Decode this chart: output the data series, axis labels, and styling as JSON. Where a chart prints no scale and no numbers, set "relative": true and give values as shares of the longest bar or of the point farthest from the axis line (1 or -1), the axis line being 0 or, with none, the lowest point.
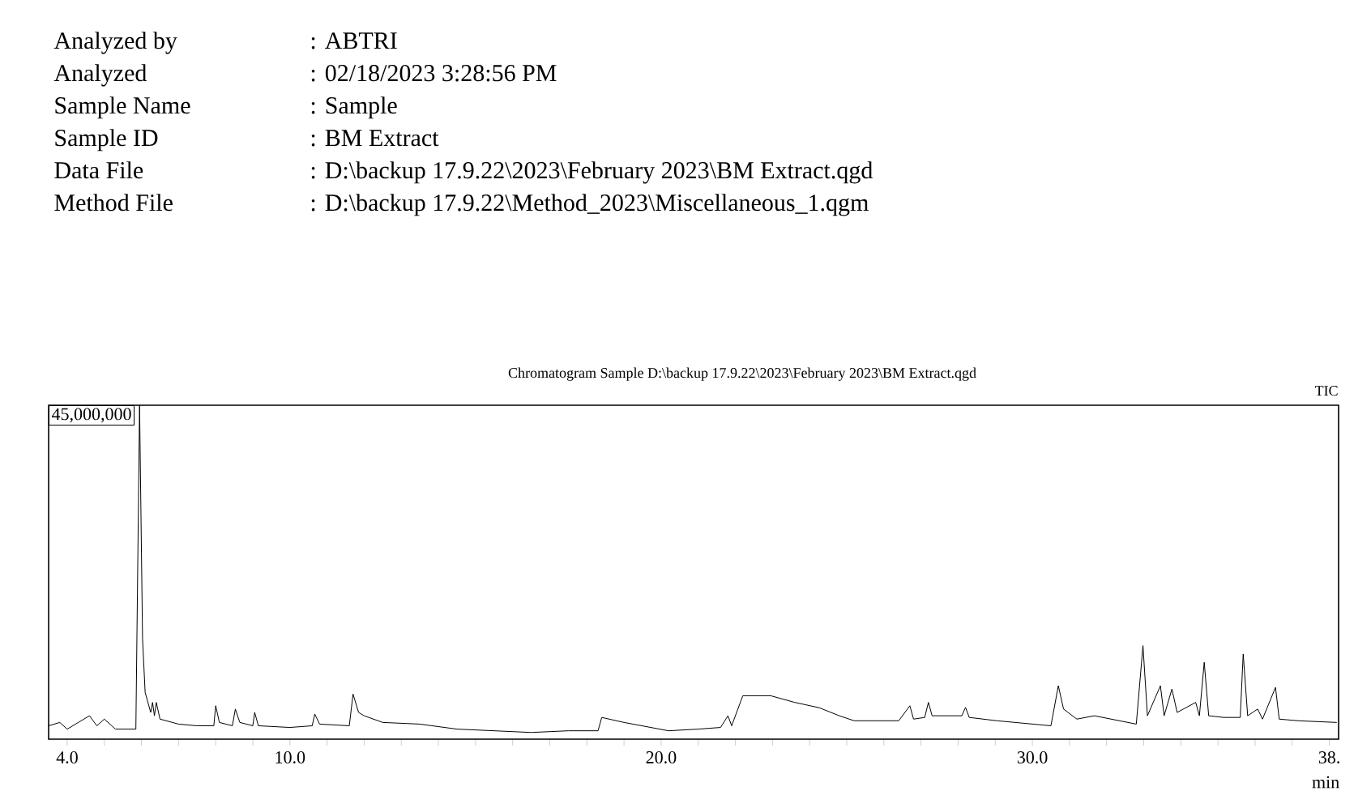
{
  "chart_data": {
    "type": "line",
    "relative": true,
    "title": "Chromatogram Sample D:\\backup 17.9.22\\2023\\February 2023\\BM Extract.qgd",
    "xlabel": "min",
    "annotations": [
      "Analyzed by",
      ": ABTRI",
      "Analyzed",
      ": 02/18/2023  3:28:56 PM",
      "Sample Name",
      ": Sample",
      "Sample ID",
      ": BM Extract",
      "Data File",
      ": D:\\backup 17.9.22\\2023\\February 2023\\BM Extract.qgd",
      "Method File",
      ": D:\\backup 17.9.22\\Method_2023\\Miscellaneous_1.qgm",
      "45,000,000",
      "TIC"
    ],
    "xlim": [
      3.5,
      38.25
    ],
    "xticks": [
      {
        "value": 4,
        "label": "4.0"
      },
      {
        "value": 5,
        "label": null
      },
      {
        "value": 6,
        "label": null
      },
      {
        "value": 7,
        "label": null
      },
      {
        "value": 8,
        "label": null
      },
      {
        "value": 9,
        "label": null
      },
      {
        "value": 10,
        "label": "10.0"
      },
      {
        "value": 11,
        "label": null
      },
      {
        "value": 12,
        "label": null
      },
      {
        "value": 13,
        "label": null
      },
      {
        "value": 14,
        "label": null
      },
      {
        "value": 15,
        "label": null
      },
      {
        "value": 16,
        "label": null
      },
      {
        "value": 17,
        "label": null
      },
      {
        "value": 18,
        "label": null
      },
      {
        "value": 19,
        "label": null
      },
      {
        "value": 20,
        "label": "20.0"
      },
      {
        "value": 21,
        "label": null
      },
      {
        "value": 22,
        "label": null
      },
      {
        "value": 23,
        "label": null
      },
      {
        "value": 24,
        "label": null
      },
      {
        "value": 25,
        "label": null
      },
      {
        "value": 26,
        "label": null
      },
      {
        "value": 27,
        "label": null
      },
      {
        "value": 28,
        "label": null
      },
      {
        "value": 29,
        "label": null
      },
      {
        "value": 30,
        "label": "30.0"
      },
      {
        "value": 31,
        "label": null
      },
      {
        "value": 32,
        "label": null
      },
      {
        "value": 33,
        "label": null
      },
      {
        "value": 34,
        "label": null
      },
      {
        "value": 35,
        "label": null
      },
      {
        "value": 36,
        "label": null
      },
      {
        "value": 37,
        "label": null
      },
      {
        "value": 38,
        "label": "38."
      }
    ],
    "grid": false,
    "marker": "none",
    "line_style": "solid",
    "series": [
      {
        "color": "#000000",
        "x": [
          3.5,
          3.8,
          4.0,
          4.3,
          4.6,
          4.8,
          5.0,
          5.3,
          5.85,
          5.95,
          6.03,
          6.1,
          6.25,
          6.3,
          6.35,
          6.4,
          6.5,
          7.0,
          7.5,
          7.95,
          8.0,
          8.1,
          8.45,
          8.53,
          8.65,
          9.0,
          9.05,
          9.15,
          10.0,
          10.6,
          10.67,
          10.8,
          11.6,
          11.7,
          11.85,
          12.0,
          12.5,
          13.5,
          14.5,
          15.5,
          16.5,
          17.5,
          18.3,
          18.4,
          19.0,
          20.2,
          21.0,
          21.6,
          21.8,
          21.9,
          22.2,
          22.95,
          23.6,
          24.26,
          24.8,
          25.2,
          26.4,
          26.7,
          26.8,
          27.1,
          27.2,
          27.3,
          28.1,
          28.2,
          28.3,
          29.05,
          30.5,
          30.7,
          30.84,
          31.2,
          31.67,
          32.8,
          32.98,
          33.1,
          33.45,
          33.55,
          33.76,
          33.9,
          34.4,
          34.5,
          34.63,
          34.75,
          35.15,
          35.6,
          35.68,
          35.8,
          36.07,
          36.2,
          36.55,
          36.65,
          37.16,
          38.2
        ],
        "values": [
          0.04,
          0.05,
          0.03,
          0.05,
          0.07,
          0.04,
          0.06,
          0.03,
          0.03,
          1.0,
          0.3,
          0.14,
          0.08,
          0.11,
          0.07,
          0.11,
          0.06,
          0.045,
          0.04,
          0.04,
          0.1,
          0.05,
          0.04,
          0.09,
          0.05,
          0.04,
          0.08,
          0.04,
          0.035,
          0.04,
          0.075,
          0.045,
          0.04,
          0.135,
          0.08,
          0.07,
          0.05,
          0.045,
          0.03,
          0.025,
          0.02,
          0.025,
          0.025,
          0.065,
          0.05,
          0.025,
          0.03,
          0.035,
          0.07,
          0.04,
          0.13,
          0.13,
          0.11,
          0.094,
          0.07,
          0.055,
          0.055,
          0.1,
          0.06,
          0.065,
          0.11,
          0.07,
          0.07,
          0.095,
          0.065,
          0.055,
          0.04,
          0.16,
          0.09,
          0.06,
          0.07,
          0.045,
          0.28,
          0.07,
          0.16,
          0.07,
          0.15,
          0.08,
          0.11,
          0.07,
          0.23,
          0.07,
          0.065,
          0.065,
          0.255,
          0.07,
          0.09,
          0.06,
          0.155,
          0.06,
          0.055,
          0.05
        ]
      }
    ]
  }
}
